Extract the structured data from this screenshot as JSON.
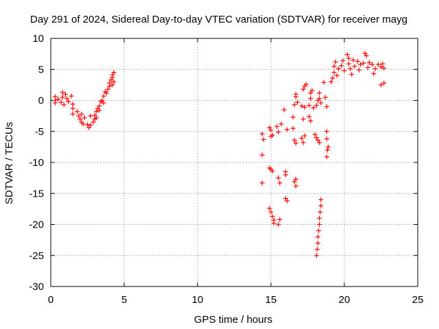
{
  "chart_data": {
    "type": "scatter",
    "title": "Day 291 of 2024, Sidereal Day-to-day VTEC variation (SDTVAR) for receiver mayg",
    "xlabel": "GPS time / hours",
    "ylabel": "SDTVAR / TECUs",
    "xlim": [
      0,
      25
    ],
    "ylim": [
      -30,
      10
    ],
    "xticks": [
      "0",
      "5",
      "10",
      "15",
      "20",
      "25"
    ],
    "yticks": [
      "10",
      "5",
      "0",
      "-5",
      "-10",
      "-15",
      "-20",
      "-25",
      "-30"
    ],
    "grid": true,
    "marker": "plus",
    "color": "#ff0000",
    "series": [
      {
        "name": "SDTVAR",
        "points": [
          [
            0.3,
            0.6
          ],
          [
            0.3,
            0.0
          ],
          [
            0.3,
            -0.4
          ],
          [
            0.5,
            0.2
          ],
          [
            0.7,
            -0.3
          ],
          [
            0.8,
            0.5
          ],
          [
            0.8,
            1.3
          ],
          [
            0.9,
            -0.7
          ],
          [
            1.0,
            1.0
          ],
          [
            1.1,
            0.3
          ],
          [
            1.2,
            -0.2
          ],
          [
            1.4,
            0.7
          ],
          [
            1.5,
            -0.6
          ],
          [
            1.5,
            -1.3
          ],
          [
            1.5,
            -2.2
          ],
          [
            1.8,
            -1.8
          ],
          [
            1.9,
            -2.5
          ],
          [
            2.0,
            -3.0
          ],
          [
            2.1,
            -2.2
          ],
          [
            2.1,
            -3.5
          ],
          [
            2.2,
            -3.8
          ],
          [
            2.3,
            -2.8
          ],
          [
            2.5,
            -3.9
          ],
          [
            2.6,
            -4.4
          ],
          [
            2.7,
            -4.0
          ],
          [
            2.7,
            -2.5
          ],
          [
            2.9,
            -3.5
          ],
          [
            3.0,
            -3.0
          ],
          [
            3.0,
            -2.4
          ],
          [
            3.1,
            -1.8
          ],
          [
            3.1,
            -2.8
          ],
          [
            3.2,
            -1.3
          ],
          [
            3.3,
            -0.9
          ],
          [
            3.3,
            -1.6
          ],
          [
            3.4,
            -0.2
          ],
          [
            3.5,
            0.0
          ],
          [
            3.6,
            0.7
          ],
          [
            3.6,
            -0.4
          ],
          [
            3.7,
            1.4
          ],
          [
            3.8,
            1.2
          ],
          [
            3.9,
            1.8
          ],
          [
            4.0,
            2.3
          ],
          [
            4.0,
            2.8
          ],
          [
            4.1,
            3.3
          ],
          [
            4.2,
            3.7
          ],
          [
            4.2,
            4.1
          ],
          [
            4.3,
            4.5
          ],
          [
            4.3,
            3.0
          ],
          [
            4.2,
            2.5
          ],
          [
            14.4,
            -5.4
          ],
          [
            14.5,
            -6.3
          ],
          [
            14.4,
            -8.8
          ],
          [
            14.4,
            -13.3
          ],
          [
            14.9,
            -4.4
          ],
          [
            15.0,
            -4.8
          ],
          [
            15.0,
            -5.8
          ],
          [
            15.1,
            -5.6
          ],
          [
            14.9,
            -10.9
          ],
          [
            15.0,
            -11.1
          ],
          [
            15.1,
            -11.4
          ],
          [
            14.9,
            -17.4
          ],
          [
            15.0,
            -18.0
          ],
          [
            15.1,
            -18.7
          ],
          [
            15.2,
            -19.3
          ],
          [
            15.2,
            -19.8
          ],
          [
            15.4,
            -4.2
          ],
          [
            15.5,
            -5.1
          ],
          [
            15.5,
            -12.5
          ],
          [
            15.6,
            -13.3
          ],
          [
            15.6,
            -19.2
          ],
          [
            15.5,
            -20.0
          ],
          [
            15.7,
            -3.8
          ],
          [
            15.9,
            -1.5
          ],
          [
            16.1,
            -4.7
          ],
          [
            16.0,
            -11.5
          ],
          [
            16.0,
            -12.0
          ],
          [
            16.0,
            -15.8
          ],
          [
            16.1,
            -16.2
          ],
          [
            16.5,
            -2.7
          ],
          [
            16.5,
            -4.5
          ],
          [
            16.6,
            -13.1
          ],
          [
            16.7,
            -13.8
          ],
          [
            16.7,
            -12.7
          ],
          [
            16.6,
            -6.4
          ],
          [
            16.7,
            -6.9
          ],
          [
            16.6,
            -0.7
          ],
          [
            16.7,
            0.6
          ],
          [
            16.8,
            -0.3
          ],
          [
            16.7,
            1.0
          ],
          [
            17.1,
            -6.1
          ],
          [
            17.2,
            -6.8
          ],
          [
            17.3,
            -5.7
          ],
          [
            17.1,
            -0.9
          ],
          [
            17.2,
            -3.0
          ],
          [
            17.3,
            -1.1
          ],
          [
            17.2,
            1.8
          ],
          [
            17.3,
            2.3
          ],
          [
            17.4,
            2.6
          ],
          [
            17.6,
            -2.6
          ],
          [
            17.7,
            -3.3
          ],
          [
            17.6,
            -0.8
          ],
          [
            17.7,
            0.3
          ],
          [
            17.7,
            1.2
          ],
          [
            17.8,
            1.6
          ],
          [
            17.9,
            -1.2
          ],
          [
            18.0,
            -5.5
          ],
          [
            18.1,
            -6.0
          ],
          [
            18.2,
            -6.4
          ],
          [
            18.3,
            -6.8
          ],
          [
            18.1,
            -0.8
          ],
          [
            18.2,
            0.0
          ],
          [
            18.3,
            0.3
          ],
          [
            18.4,
            -0.4
          ],
          [
            18.3,
            1.2
          ],
          [
            18.1,
            -25.0
          ],
          [
            18.15,
            -24.0
          ],
          [
            18.2,
            -23.0
          ],
          [
            18.2,
            -22.0
          ],
          [
            18.25,
            -21.0
          ],
          [
            18.3,
            -20.0
          ],
          [
            18.3,
            -19.0
          ],
          [
            18.35,
            -18.0
          ],
          [
            18.4,
            -17.0
          ],
          [
            18.4,
            -16.0
          ],
          [
            18.6,
            2.9
          ],
          [
            18.7,
            0.5
          ],
          [
            18.8,
            -1.0
          ],
          [
            18.8,
            -5.0
          ],
          [
            18.8,
            -6.2
          ],
          [
            18.9,
            -7.5
          ],
          [
            18.8,
            -9.1
          ],
          [
            18.85,
            -8.0
          ],
          [
            19.1,
            3.0
          ],
          [
            19.2,
            3.6
          ],
          [
            19.3,
            4.5
          ],
          [
            19.3,
            5.5
          ],
          [
            19.4,
            6.2
          ],
          [
            19.5,
            4.0
          ],
          [
            19.6,
            5.1
          ],
          [
            19.8,
            5.6
          ],
          [
            19.9,
            6.4
          ],
          [
            20.0,
            4.8
          ],
          [
            20.2,
            7.4
          ],
          [
            20.3,
            6.8
          ],
          [
            20.3,
            5.9
          ],
          [
            20.4,
            5.1
          ],
          [
            20.5,
            4.2
          ],
          [
            20.6,
            6.5
          ],
          [
            20.7,
            5.5
          ],
          [
            20.9,
            6.3
          ],
          [
            21.0,
            4.9
          ],
          [
            21.1,
            5.8
          ],
          [
            21.3,
            6.0
          ],
          [
            21.4,
            7.6
          ],
          [
            21.5,
            7.2
          ],
          [
            21.6,
            5.3
          ],
          [
            21.7,
            6.1
          ],
          [
            21.9,
            5.8
          ],
          [
            22.0,
            4.3
          ],
          [
            22.1,
            5.1
          ],
          [
            22.3,
            5.8
          ],
          [
            22.5,
            5.4
          ],
          [
            22.6,
            5.9
          ],
          [
            22.7,
            5.2
          ],
          [
            22.5,
            2.5
          ],
          [
            22.7,
            2.8
          ]
        ]
      }
    ]
  }
}
